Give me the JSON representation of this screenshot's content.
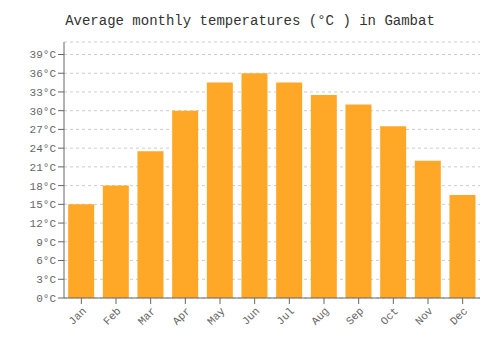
{
  "chart_data": {
    "type": "bar",
    "title": "Average monthly temperatures (°C ) in Gambat",
    "categories": [
      "Jan",
      "Feb",
      "Mar",
      "Apr",
      "May",
      "Jun",
      "Jul",
      "Aug",
      "Sep",
      "Oct",
      "Nov",
      "Dec"
    ],
    "values": [
      15,
      18,
      23.5,
      30,
      34.5,
      36,
      34.5,
      32.5,
      31,
      27.5,
      22,
      16.5
    ],
    "color": "#FFA726",
    "ylim": [
      0,
      41
    ],
    "yticks": [
      {
        "value": 0,
        "label": "0°C"
      },
      {
        "value": 3,
        "label": "3°C"
      },
      {
        "value": 6,
        "label": "6°C"
      },
      {
        "value": 9,
        "label": "9°C"
      },
      {
        "value": 12,
        "label": "12°C"
      },
      {
        "value": 15,
        "label": "15°C"
      },
      {
        "value": 18,
        "label": "18°C"
      },
      {
        "value": 21,
        "label": "21°C"
      },
      {
        "value": 24,
        "label": "24°C"
      },
      {
        "value": 27,
        "label": "27°C"
      },
      {
        "value": 30,
        "label": "30°C"
      },
      {
        "value": 33,
        "label": "33°C"
      },
      {
        "value": 36,
        "label": "36°C"
      },
      {
        "value": 39,
        "label": "39°C"
      }
    ],
    "grid": true
  }
}
